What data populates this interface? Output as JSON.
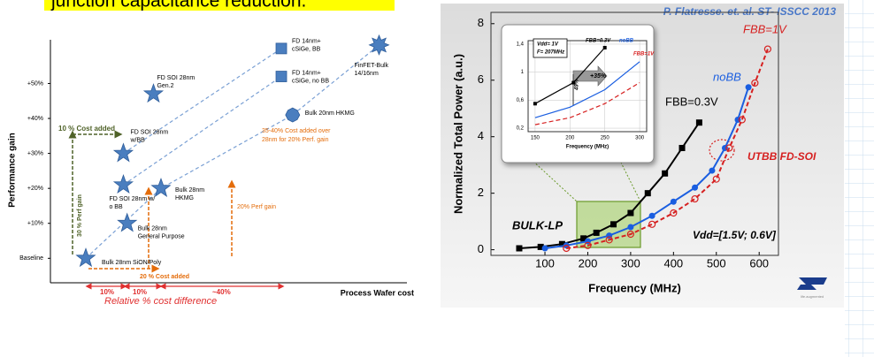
{
  "slide_text": {
    "heading": "junction capacitance reduction.",
    "logo_tagline": "life.augmented"
  },
  "chart_data": [
    {
      "type": "scatter",
      "y_label": "Performance gain",
      "x_label": "Process Wafer cost",
      "x": [
        0,
        11,
        10,
        10,
        18,
        20,
        55,
        52,
        52,
        78
      ],
      "values": [
        0,
        10,
        21,
        30,
        47,
        20,
        41,
        60,
        52,
        61
      ],
      "point_labels": [
        [
          "Bulk 28nm SiON/Poly"
        ],
        [
          "Bulk 28nm",
          "General Purpose"
        ],
        [
          "FD SOI 28nm w/",
          "o BB"
        ],
        [
          "FD SOI 28nm",
          "w/BB"
        ],
        [
          "FD SOI 28nm",
          "Gen.2"
        ],
        [
          "Bulk 28nm",
          "HKMG"
        ],
        [
          "Bulk 20nm HKMG"
        ],
        [
          "FD 14nm+",
          "cSiGe, BB"
        ],
        [
          "FD 14nm+",
          "cSiGe, no BB"
        ],
        [
          "FinFET-Bulk",
          "14/16nm"
        ]
      ],
      "markers": [
        "star",
        "star",
        "star",
        "star",
        "star",
        "star",
        "octagon",
        "square",
        "square",
        "burst"
      ],
      "color": "#4a7ebf",
      "xlim": [
        -9.4,
        85.4
      ],
      "ylim": [
        -7,
        62.5
      ],
      "yticks": [
        {
          "value": 0,
          "label": "Baseline"
        },
        {
          "value": 10,
          "label": "+10%"
        },
        {
          "value": 20,
          "label": "+20%"
        },
        {
          "value": 30,
          "label": "+30%"
        },
        {
          "value": 40,
          "label": "+40%"
        },
        {
          "value": 50,
          "label": "+50%"
        }
      ],
      "annotations": [
        "10 % Cost added",
        "30 % Perf gain",
        "20 % Cost added",
        "20% Perf gain",
        "35-40% Cost added over",
        "28nm for 20% Perf. gain",
        "10%",
        "10%",
        "~40%",
        "Relative % cost difference"
      ]
    },
    {
      "type": "line",
      "title": "P. Flatresse. et. al. ST- ISSCC 2013",
      "x_label": "Frequency (MHz)",
      "y_label": "Normalized Total Power (a.u.)",
      "series": [
        {
          "name": "FBB=0.3V",
          "color": "#000000",
          "marker": "square",
          "dash": false,
          "x": [
            40,
            90,
            140,
            190,
            220,
            260,
            300,
            340,
            380,
            420,
            460
          ],
          "values": [
            0.05,
            0.1,
            0.2,
            0.4,
            0.6,
            0.9,
            1.3,
            2.0,
            2.7,
            3.6,
            4.5
          ]
        },
        {
          "name": "noBB",
          "color": "#1a5ee0",
          "marker": "circle",
          "dash": false,
          "x": [
            100,
            150,
            200,
            250,
            300,
            350,
            400,
            450,
            490,
            520,
            550,
            575
          ],
          "values": [
            0.05,
            0.15,
            0.3,
            0.5,
            0.8,
            1.2,
            1.7,
            2.2,
            2.8,
            3.6,
            4.6,
            5.75
          ]
        },
        {
          "name": "FBB=1V",
          "color": "#d62020",
          "marker": "open-circle",
          "dash": true,
          "x": [
            150,
            200,
            250,
            300,
            350,
            400,
            450,
            500,
            530,
            560,
            590,
            620
          ],
          "values": [
            0.05,
            0.15,
            0.35,
            0.55,
            0.9,
            1.3,
            1.8,
            2.5,
            3.6,
            4.6,
            5.9,
            7.1
          ]
        }
      ],
      "xlim": [
        -26,
        645
      ],
      "ylim": [
        -0.2,
        8.4
      ],
      "xticks": [
        100,
        200,
        300,
        400,
        500,
        600
      ],
      "yticks": [
        0,
        2,
        4,
        6,
        8
      ],
      "grid": false,
      "annotations": [
        "BULK-LP",
        "UTBB FD-SOI",
        "Vdd=[1.5V; 0.6V]"
      ]
    },
    {
      "type": "line",
      "x_label": "Frequency (MHz)",
      "series": [
        {
          "name": "FBB=0.3V",
          "color": "#000000",
          "marker": "square",
          "dash": false,
          "x": [
            150,
            205,
            250
          ],
          "values": [
            0.55,
            0.85,
            1.35
          ]
        },
        {
          "name": "noBB",
          "color": "#1a5ee0",
          "marker": "none",
          "dash": false,
          "x": [
            150,
            200,
            250,
            300
          ],
          "values": [
            0.35,
            0.5,
            0.75,
            1.15
          ]
        },
        {
          "name": "FBB=1V",
          "color": "#d62020",
          "marker": "none",
          "dash": true,
          "x": [
            150,
            200,
            250,
            300
          ],
          "values": [
            0.25,
            0.35,
            0.55,
            0.85
          ]
        }
      ],
      "xlim": [
        140,
        310
      ],
      "ylim": [
        0.15,
        1.45
      ],
      "xticks": [
        150,
        200,
        250,
        300
      ],
      "yticks": [
        {
          "value": 0.2,
          "label": "0,2"
        },
        {
          "value": 0.6,
          "label": "0,6"
        },
        1,
        {
          "value": 1.4,
          "label": "1,4"
        }
      ],
      "grid": true,
      "annotations": [
        "Vdd= 1V",
        "F= 207MHz",
        "+35%",
        "49%"
      ]
    }
  ]
}
